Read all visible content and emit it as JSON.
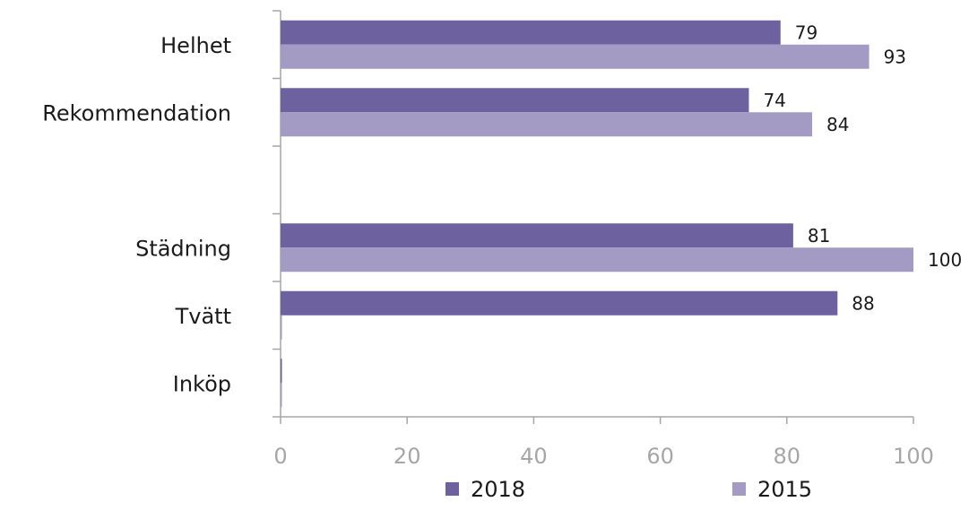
{
  "chart_data": {
    "type": "bar",
    "orientation": "horizontal",
    "categories": [
      "Helhet",
      "Rekommendation",
      "",
      "Städning",
      "Tvätt",
      "Inköp"
    ],
    "series": [
      {
        "name": "2018",
        "color": "#6d61a0",
        "values": [
          79,
          74,
          null,
          81,
          88,
          0
        ],
        "labels": [
          "79",
          "74",
          "",
          "81",
          "88",
          ""
        ]
      },
      {
        "name": "2015",
        "color": "#a39bc4",
        "values": [
          93,
          84,
          null,
          100,
          0,
          0
        ],
        "labels": [
          "93",
          "84",
          "",
          "100",
          "",
          ""
        ]
      }
    ],
    "xlim": [
      0,
      100
    ],
    "xticks": [
      "0",
      "20",
      "40",
      "60",
      "80",
      "100"
    ],
    "grid": false,
    "legend_position": "bottom",
    "axis_color": "#a6a6a6"
  }
}
